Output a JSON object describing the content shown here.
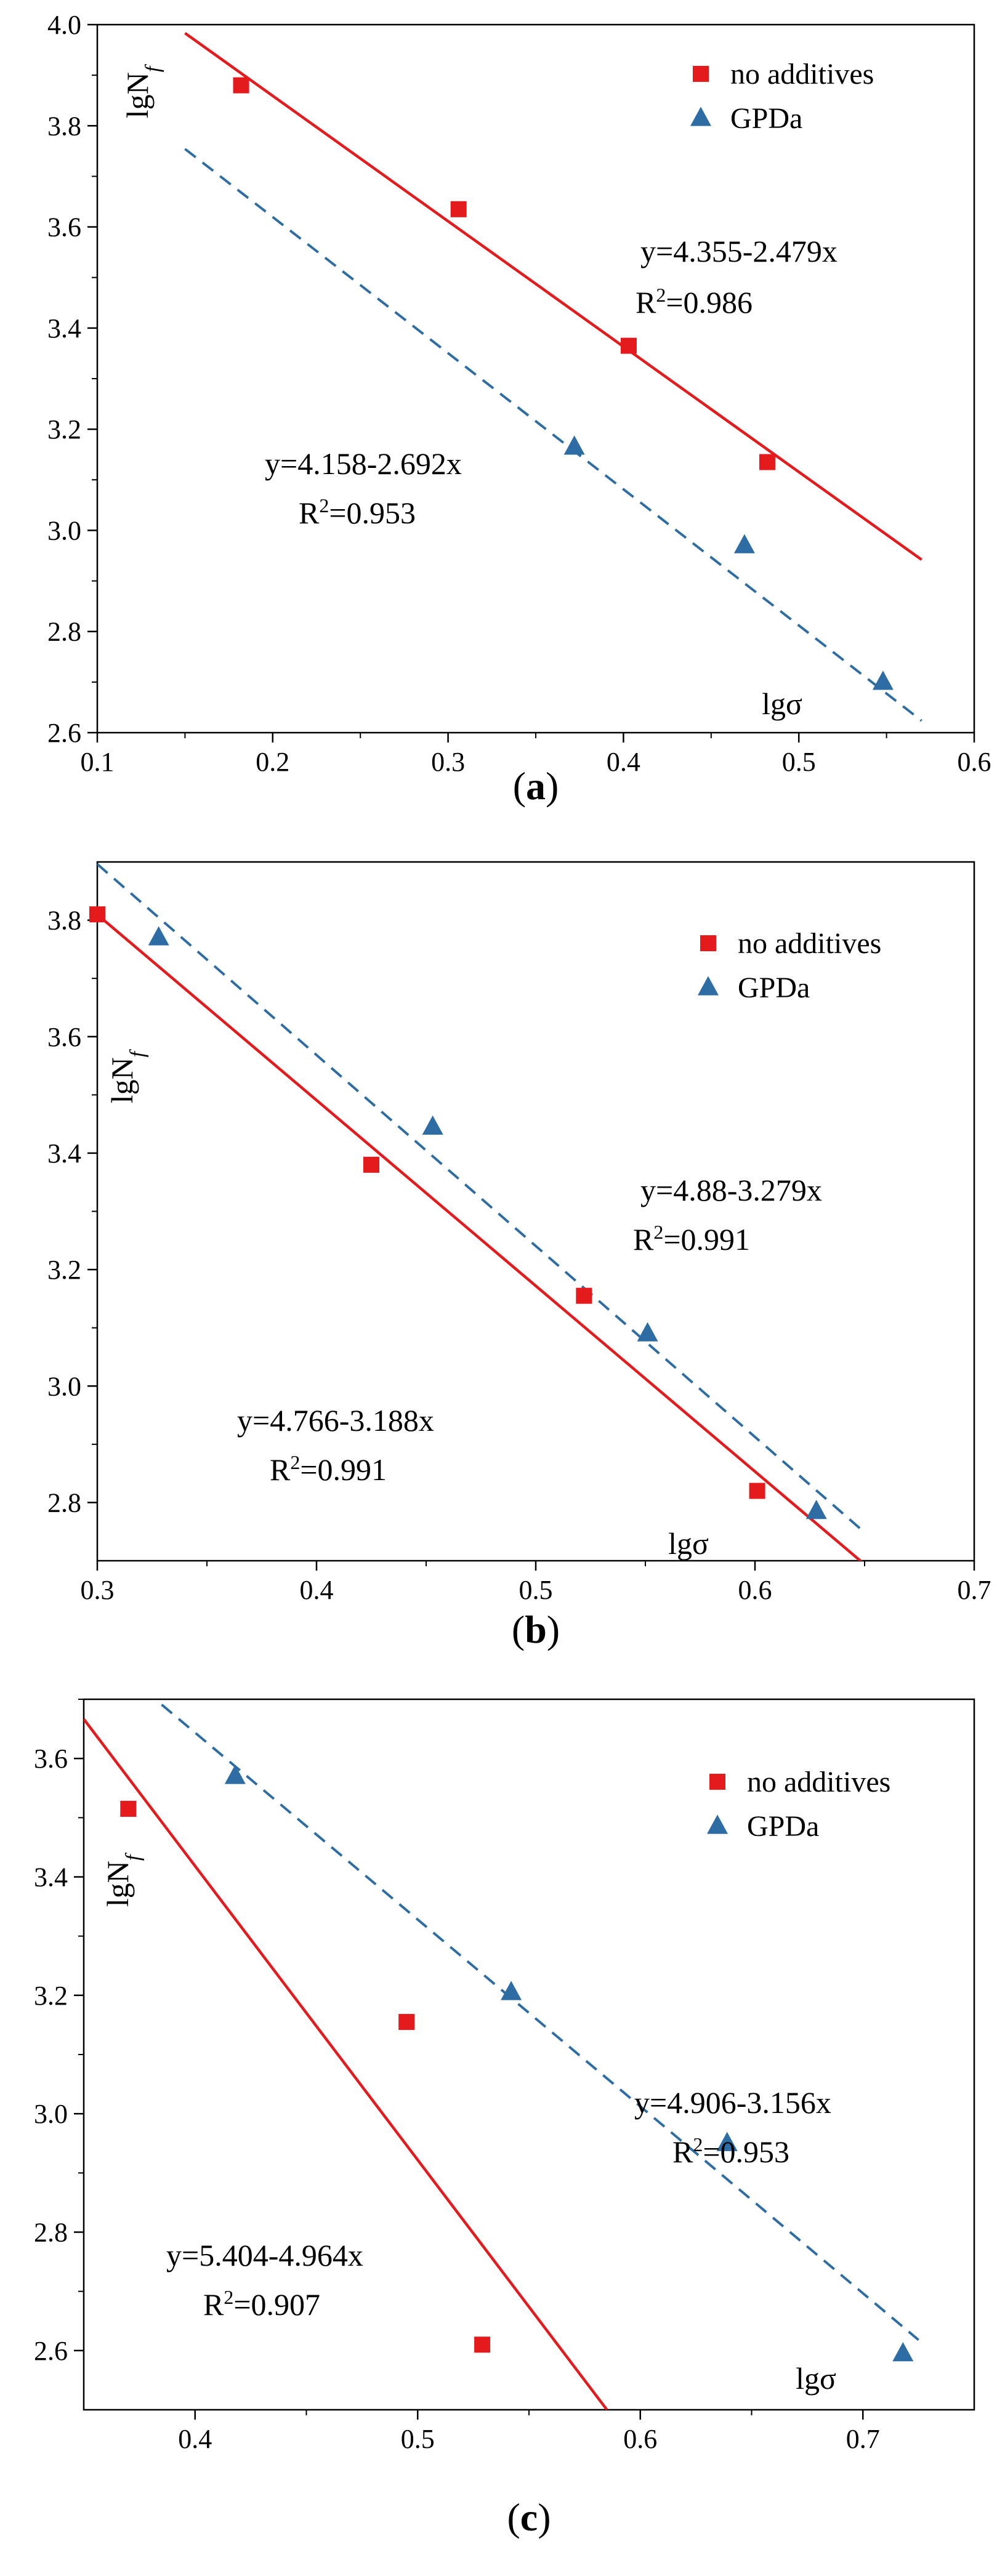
{
  "chart_data": [
    {
      "type": "scatter",
      "panel_label": "a",
      "xlim": [
        0.1,
        0.6
      ],
      "ylim": [
        2.6,
        4.0
      ],
      "xticks": [
        "0.1",
        "0.2",
        "0.3",
        "0.4",
        "0.5",
        "0.6"
      ],
      "yticks": [
        "2.6",
        "2.8",
        "3.0",
        "3.2",
        "3.4",
        "3.6",
        "3.8",
        "4.0"
      ],
      "xlabel": "lgσ",
      "ylabel": "lgNf",
      "legend_position": "top-right",
      "series": [
        {
          "name": "no additives",
          "marker": "square",
          "color": "#e41a1c",
          "points": [
            [
              0.182,
              3.88
            ],
            [
              0.306,
              3.635
            ],
            [
              0.403,
              3.365
            ],
            [
              0.482,
              3.135
            ]
          ],
          "fit": {
            "intercept": 4.355,
            "slope": -2.479,
            "x_range": [
              0.15,
              0.57
            ],
            "style": "solid",
            "equation": "y=4.355-2.479x",
            "r2": "=0.986"
          }
        },
        {
          "name": "GPDa",
          "marker": "triangle",
          "color": "#2e6da4",
          "points": [
            [
              0.372,
              3.165
            ],
            [
              0.469,
              2.97
            ],
            [
              0.548,
              2.7
            ]
          ],
          "fit": {
            "intercept": 4.158,
            "slope": -2.692,
            "x_range": [
              0.15,
              0.57
            ],
            "style": "dashed",
            "equation": "y=4.158-2.692x",
            "r2": "=0.953"
          }
        }
      ]
    },
    {
      "type": "scatter",
      "panel_label": "b",
      "xlim": [
        0.3,
        0.7
      ],
      "ylim": [
        2.7,
        3.9
      ],
      "xticks": [
        "0.3",
        "0.4",
        "0.5",
        "0.6",
        "0.7"
      ],
      "yticks": [
        "2.8",
        "3.0",
        "3.2",
        "3.4",
        "3.6",
        "3.8"
      ],
      "xlabel": "lgσ",
      "ylabel": "lgNf",
      "legend_position": "top-right",
      "series": [
        {
          "name": "no additives",
          "marker": "square",
          "color": "#e41a1c",
          "points": [
            [
              0.3,
              3.81
            ],
            [
              0.425,
              3.38
            ],
            [
              0.522,
              3.155
            ],
            [
              0.601,
              2.82
            ]
          ],
          "fit": {
            "intercept": 4.766,
            "slope": -3.188,
            "x_range": [
              0.3,
              0.65
            ],
            "style": "solid",
            "equation": "y=4.766-3.188x",
            "r2": "=0.991"
          }
        },
        {
          "name": "GPDa",
          "marker": "triangle",
          "color": "#2e6da4",
          "points": [
            [
              0.328,
              3.77
            ],
            [
              0.453,
              3.445
            ],
            [
              0.551,
              3.09
            ],
            [
              0.628,
              2.785
            ]
          ],
          "fit": {
            "intercept": 4.88,
            "slope": -3.279,
            "x_range": [
              0.3,
              0.65
            ],
            "style": "dashed",
            "equation": "y=4.88-3.279x",
            "r2": "=0.991"
          }
        }
      ]
    },
    {
      "type": "scatter",
      "panel_label": "c",
      "xlim": [
        0.35,
        0.75
      ],
      "ylim": [
        2.5,
        3.7
      ],
      "xticks": [
        "0.4",
        "0.5",
        "0.6",
        "0.7"
      ],
      "yticks": [
        "2.6",
        "2.8",
        "3.0",
        "3.2",
        "3.4",
        "3.6"
      ],
      "xlabel": "lgσ",
      "ylabel": "lgNf",
      "legend_position": "top-right",
      "series": [
        {
          "name": "no additives",
          "marker": "square",
          "color": "#e41a1c",
          "points": [
            [
              0.37,
              3.515
            ],
            [
              0.495,
              3.155
            ],
            [
              0.529,
              2.61
            ]
          ],
          "fit": {
            "intercept": 5.404,
            "slope": -4.964,
            "x_range": [
              0.35,
              0.585
            ],
            "style": "solid",
            "equation": "y=5.404-4.964x",
            "r2": "=0.907"
          }
        },
        {
          "name": "GPDa",
          "marker": "triangle",
          "color": "#2e6da4",
          "points": [
            [
              0.418,
              3.57
            ],
            [
              0.542,
              3.205
            ],
            [
              0.639,
              2.95
            ],
            [
              0.718,
              2.595
            ]
          ],
          "fit": {
            "intercept": 4.906,
            "slope": -3.156,
            "x_range": [
              0.385,
              0.725
            ],
            "style": "dashed",
            "equation": "y=4.906-3.156x",
            "r2": "=0.953"
          }
        }
      ]
    }
  ]
}
